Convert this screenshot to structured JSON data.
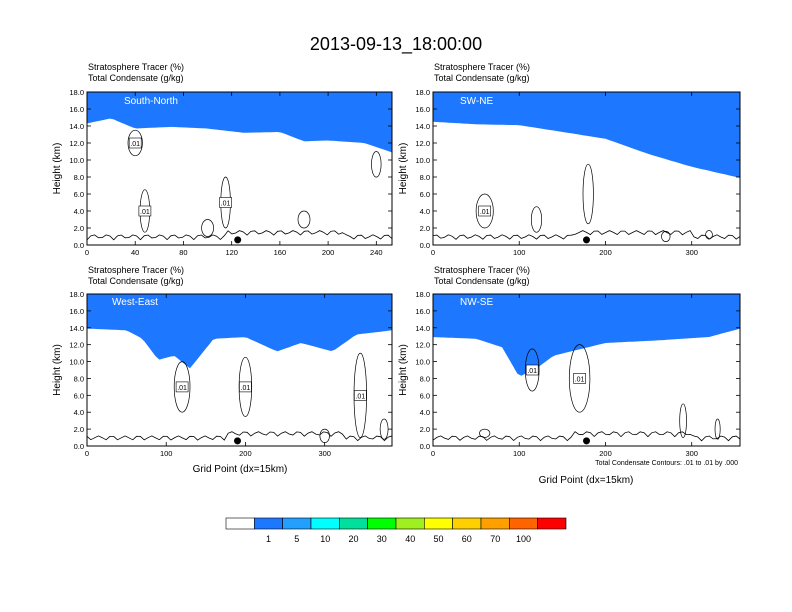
{
  "title": "2013-09-13_18:00:00",
  "chart_data": {
    "type": "heatmap",
    "title": "2013-09-13_18:00:00",
    "colorbar": {
      "ticks": [
        "1",
        "5",
        "10",
        "20",
        "30",
        "40",
        "50",
        "60",
        "70",
        "100"
      ],
      "colors": [
        "#ffffff",
        "#1e78ff",
        "#23a0ff",
        "#00ffff",
        "#00e09c",
        "#00ff00",
        "#a0f020",
        "#ffff00",
        "#ffd000",
        "#ffa000",
        "#ff6400",
        "#ff0000"
      ]
    },
    "contour_note": "Total Condensate Contours: .01 to .01 by .000",
    "panels": [
      {
        "name": "South-North",
        "subtitle_line1": "Stratosphere Tracer   (%)",
        "subtitle_line2": "Total Condensate   (g/kg)",
        "xlim": [
          0,
          253
        ],
        "xticks": [
          "0",
          "40",
          "80",
          "120",
          "160",
          "200",
          "240"
        ],
        "ylim": [
          0,
          18
        ],
        "yticks": [
          "0.0",
          "2.0",
          "4.0",
          "6.0",
          "8.0",
          "10.0",
          "12.0",
          "14.0",
          "16.0",
          "18.0"
        ],
        "ylabel": "Height (km)",
        "xlabel": "",
        "tropopause_km": [
          [
            0,
            14.6
          ],
          [
            20,
            15.2
          ],
          [
            40,
            14.0
          ],
          [
            70,
            14.2
          ],
          [
            100,
            14.0
          ],
          [
            130,
            13.5
          ],
          [
            160,
            13.6
          ],
          [
            180,
            12.5
          ],
          [
            200,
            12.6
          ],
          [
            230,
            12.3
          ],
          [
            253,
            11.2
          ]
        ],
        "contour_labels": [
          ".01",
          ".01",
          ".01"
        ],
        "marker_x": 125
      },
      {
        "name": "SW-NE",
        "subtitle_line1": "Stratosphere Tracer   (%)",
        "subtitle_line2": "Total Condensate   (g/kg)",
        "xlim": [
          0,
          356
        ],
        "xticks": [
          "0",
          "100",
          "200",
          "300"
        ],
        "ylim": [
          0,
          18
        ],
        "yticks": [
          "0.0",
          "2.0",
          "4.0",
          "6.0",
          "8.0",
          "10.0",
          "12.0",
          "14.0",
          "16.0",
          "18.0"
        ],
        "ylabel": "Height (km)",
        "xlabel": "",
        "tropopause_km": [
          [
            0,
            14.8
          ],
          [
            50,
            14.5
          ],
          [
            100,
            14.4
          ],
          [
            150,
            13.6
          ],
          [
            200,
            12.8
          ],
          [
            250,
            11.0
          ],
          [
            300,
            9.5
          ],
          [
            356,
            8.2
          ]
        ],
        "contour_labels": [
          ".01"
        ],
        "marker_x": 178
      },
      {
        "name": "West-East",
        "subtitle_line1": "Stratosphere Tracer   (%)",
        "subtitle_line2": "Total Condensate   (g/kg)",
        "xlim": [
          0,
          385
        ],
        "xticks": [
          "0",
          "100",
          "200",
          "300"
        ],
        "ylim": [
          0,
          18
        ],
        "yticks": [
          "0.0",
          "2.0",
          "4.0",
          "6.0",
          "8.0",
          "10.0",
          "12.0",
          "14.0",
          "16.0",
          "18.0"
        ],
        "ylabel": "Height (km)",
        "xlabel": "Grid Point (dx=15km)",
        "tropopause_km": [
          [
            0,
            14.2
          ],
          [
            50,
            14.0
          ],
          [
            70,
            13.0
          ],
          [
            90,
            10.5
          ],
          [
            110,
            11.0
          ],
          [
            130,
            9.5
          ],
          [
            160,
            13.0
          ],
          [
            200,
            13.2
          ],
          [
            240,
            11.5
          ],
          [
            270,
            12.5
          ],
          [
            310,
            11.5
          ],
          [
            340,
            13.5
          ],
          [
            385,
            14.0
          ]
        ],
        "contour_labels": [
          ".01",
          ".01",
          ".01"
        ],
        "marker_x": 190
      },
      {
        "name": "NW-SE",
        "subtitle_line1": "Stratosphere Tracer   (%)",
        "subtitle_line2": "Total Condensate   (g/kg)",
        "xlim": [
          0,
          356
        ],
        "xticks": [
          "0",
          "100",
          "200",
          "300"
        ],
        "ylim": [
          0,
          18
        ],
        "yticks": [
          "0.0",
          "2.0",
          "4.0",
          "6.0",
          "8.0",
          "10.0",
          "12.0",
          "14.0",
          "16.0",
          "18.0"
        ],
        "ylabel": "Height (km)",
        "xlabel": "Grid Point (dx=15km)",
        "tropopause_km": [
          [
            0,
            13.2
          ],
          [
            50,
            13.0
          ],
          [
            80,
            12.0
          ],
          [
            100,
            8.5
          ],
          [
            120,
            9.5
          ],
          [
            140,
            11.0
          ],
          [
            200,
            12.5
          ],
          [
            260,
            12.8
          ],
          [
            320,
            13.2
          ],
          [
            356,
            14.2
          ]
        ],
        "contour_labels": [
          ".01",
          ".01"
        ],
        "marker_x": 178
      }
    ]
  }
}
